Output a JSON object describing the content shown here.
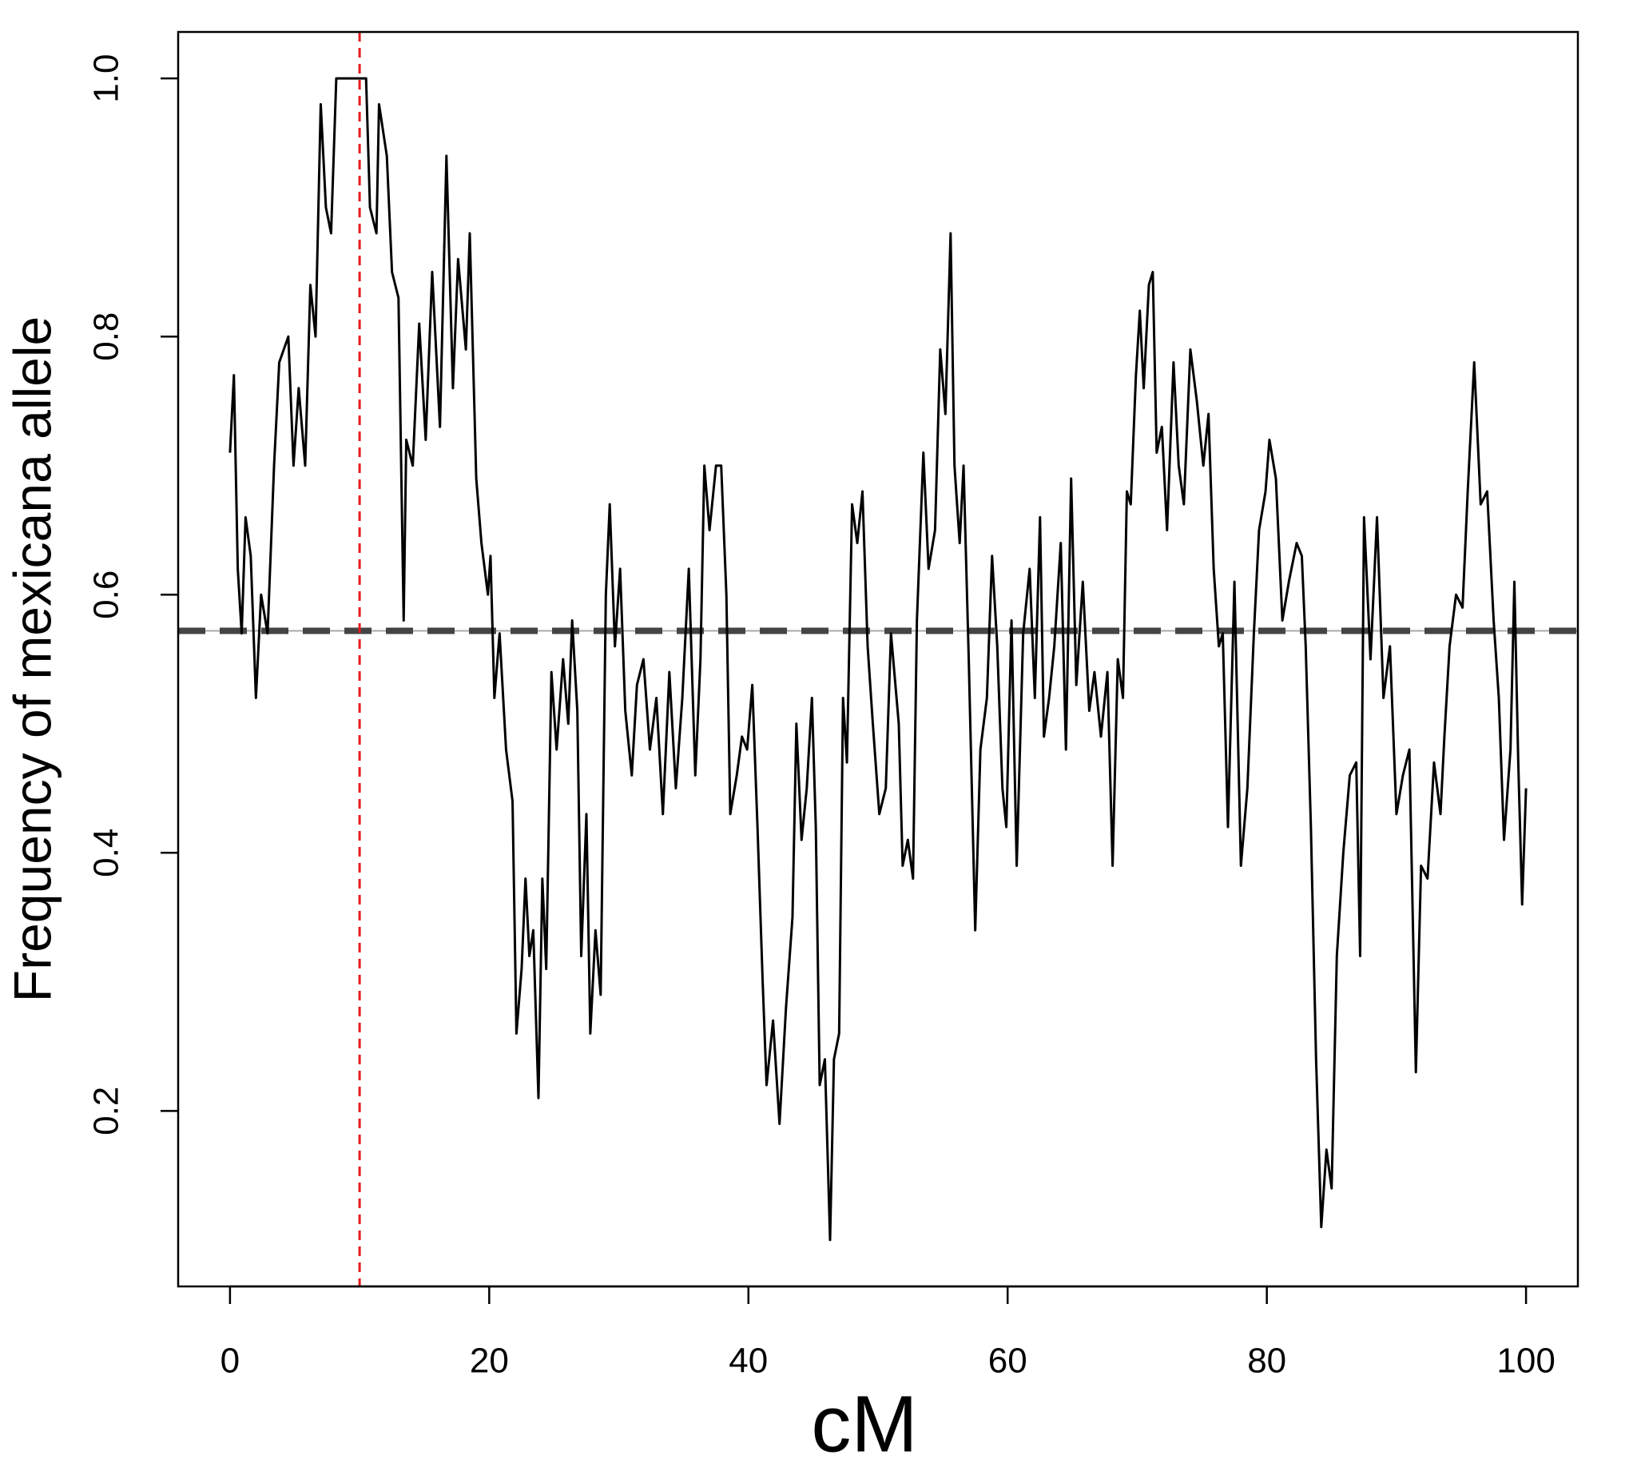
{
  "chart_data": {
    "type": "line",
    "xlabel": "cM",
    "ylabel": "Frequency of mexicana allele",
    "xlim": [
      -4,
      104
    ],
    "ylim": [
      0.064,
      1.036
    ],
    "xticks": [
      0,
      20,
      40,
      60,
      80,
      100
    ],
    "yticks": [
      0.2,
      0.4,
      0.6,
      0.8,
      {
        "value": 1,
        "label": "1.0"
      }
    ],
    "color": "#000000",
    "hline": 0.572,
    "hline_color": "#444444",
    "vline": 10,
    "vline_color": "#e41a1c",
    "x": [
      0,
      0.3,
      0.6,
      0.9,
      1.2,
      1.6,
      2.0,
      2.4,
      2.9,
      3.4,
      3.8,
      4.5,
      4.9,
      5.3,
      5.8,
      6.2,
      6.6,
      7.0,
      7.4,
      7.8,
      8.2,
      10.5,
      10.8,
      11.3,
      11.5,
      12.1,
      12.5,
      13.0,
      13.4,
      13.6,
      14.1,
      14.6,
      15.1,
      15.6,
      16.2,
      16.7,
      17.2,
      17.6,
      18.2,
      18.5,
      19.0,
      19.4,
      19.9,
      20.1,
      20.4,
      20.8,
      21.3,
      21.8,
      22.1,
      22.5,
      22.8,
      23.1,
      23.4,
      23.8,
      24.1,
      24.4,
      24.8,
      25.2,
      25.7,
      26.1,
      26.4,
      26.8,
      27.1,
      27.5,
      27.8,
      28.2,
      28.6,
      29.0,
      29.3,
      29.7,
      30.1,
      30.5,
      31.0,
      31.4,
      31.9,
      32.4,
      32.9,
      33.4,
      33.9,
      34.4,
      34.9,
      35.4,
      35.9,
      36.3,
      36.6,
      37.0,
      37.5,
      37.9,
      38.3,
      38.6,
      39.1,
      39.5,
      39.9,
      40.3,
      40.7,
      41.1,
      41.4,
      41.9,
      42.4,
      42.9,
      43.4,
      43.7,
      44.1,
      44.5,
      44.9,
      45.2,
      45.5,
      45.9,
      46.3,
      46.6,
      47.0,
      47.3,
      47.6,
      48.0,
      48.4,
      48.8,
      49.2,
      49.6,
      50.1,
      50.6,
      51.0,
      51.6,
      51.9,
      52.3,
      52.7,
      53.0,
      53.5,
      53.9,
      54.4,
      54.8,
      55.2,
      55.6,
      55.9,
      56.3,
      56.6,
      57.0,
      57.5,
      57.9,
      58.4,
      58.8,
      59.2,
      59.6,
      59.9,
      60.3,
      60.7,
      61.2,
      61.7,
      62.1,
      62.5,
      62.8,
      63.2,
      63.6,
      64.1,
      64.5,
      64.9,
      65.3,
      65.8,
      66.3,
      66.7,
      67.2,
      67.7,
      68.1,
      68.5,
      68.9,
      69.2,
      69.5,
      69.9,
      70.2,
      70.5,
      70.9,
      71.2,
      71.5,
      71.9,
      72.3,
      72.8,
      73.2,
      73.6,
      74.1,
      74.6,
      75.1,
      75.5,
      75.9,
      76.3,
      76.6,
      77.0,
      77.5,
      78.0,
      78.5,
      79.0,
      79.4,
      79.9,
      80.2,
      80.7,
      81.2,
      81.7,
      82.3,
      82.7,
      83.0,
      83.4,
      83.8,
      84.2,
      84.6,
      85.0,
      85.4,
      85.9,
      86.4,
      86.9,
      87.2,
      87.5,
      88.0,
      88.5,
      89.0,
      89.5,
      90.0,
      90.5,
      91.0,
      91.5,
      91.9,
      92.4,
      92.9,
      93.4,
      93.7,
      94.1,
      94.6,
      95.1,
      95.5,
      96.0,
      96.5,
      97.0,
      97.5,
      97.9,
      98.3,
      98.8,
      99.1,
      99.4,
      99.7,
      100
    ],
    "values": [
      0.71,
      0.77,
      0.62,
      0.57,
      0.66,
      0.63,
      0.52,
      0.6,
      0.57,
      0.7,
      0.78,
      0.8,
      0.7,
      0.76,
      0.7,
      0.84,
      0.8,
      0.98,
      0.9,
      0.88,
      1.0,
      1.0,
      0.9,
      0.88,
      0.98,
      0.94,
      0.85,
      0.83,
      0.58,
      0.72,
      0.7,
      0.81,
      0.72,
      0.85,
      0.73,
      0.94,
      0.76,
      0.86,
      0.79,
      0.88,
      0.69,
      0.64,
      0.6,
      0.63,
      0.52,
      0.57,
      0.48,
      0.44,
      0.26,
      0.31,
      0.38,
      0.32,
      0.34,
      0.21,
      0.38,
      0.31,
      0.54,
      0.48,
      0.55,
      0.5,
      0.58,
      0.51,
      0.32,
      0.43,
      0.26,
      0.34,
      0.29,
      0.6,
      0.67,
      0.56,
      0.62,
      0.51,
      0.46,
      0.53,
      0.55,
      0.48,
      0.52,
      0.43,
      0.54,
      0.45,
      0.52,
      0.62,
      0.46,
      0.55,
      0.7,
      0.65,
      0.7,
      0.7,
      0.6,
      0.43,
      0.46,
      0.49,
      0.48,
      0.53,
      0.42,
      0.3,
      0.22,
      0.27,
      0.19,
      0.28,
      0.35,
      0.5,
      0.41,
      0.45,
      0.52,
      0.42,
      0.22,
      0.24,
      0.1,
      0.24,
      0.26,
      0.52,
      0.47,
      0.67,
      0.64,
      0.68,
      0.56,
      0.5,
      0.43,
      0.45,
      0.57,
      0.5,
      0.39,
      0.41,
      0.38,
      0.58,
      0.71,
      0.62,
      0.65,
      0.79,
      0.74,
      0.88,
      0.7,
      0.64,
      0.7,
      0.55,
      0.34,
      0.48,
      0.52,
      0.63,
      0.56,
      0.45,
      0.42,
      0.58,
      0.39,
      0.57,
      0.62,
      0.52,
      0.66,
      0.49,
      0.52,
      0.56,
      0.64,
      0.48,
      0.69,
      0.53,
      0.61,
      0.51,
      0.54,
      0.49,
      0.54,
      0.39,
      0.55,
      0.52,
      0.68,
      0.67,
      0.77,
      0.82,
      0.76,
      0.84,
      0.85,
      0.71,
      0.73,
      0.65,
      0.78,
      0.7,
      0.67,
      0.79,
      0.75,
      0.7,
      0.74,
      0.62,
      0.56,
      0.57,
      0.42,
      0.61,
      0.39,
      0.45,
      0.57,
      0.65,
      0.68,
      0.72,
      0.69,
      0.58,
      0.61,
      0.64,
      0.63,
      0.56,
      0.42,
      0.24,
      0.11,
      0.17,
      0.14,
      0.32,
      0.4,
      0.46,
      0.47,
      0.32,
      0.66,
      0.55,
      0.66,
      0.52,
      0.56,
      0.43,
      0.46,
      0.48,
      0.23,
      0.39,
      0.38,
      0.47,
      0.43,
      0.49,
      0.56,
      0.6,
      0.59,
      0.68,
      0.78,
      0.67,
      0.68,
      0.58,
      0.52,
      0.41,
      0.48,
      0.61,
      0.47,
      0.36,
      0.45
    ]
  }
}
